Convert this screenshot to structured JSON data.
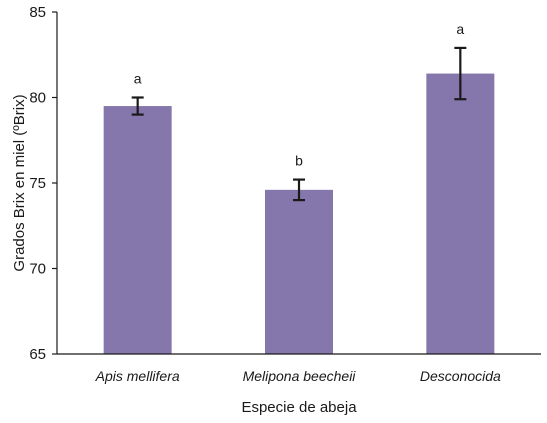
{
  "chart_data": {
    "type": "bar",
    "categories": [
      "Apis mellifera",
      "Melipona beecheii",
      "Desconocida"
    ],
    "values": [
      79.5,
      74.6,
      81.4
    ],
    "error": [
      0.5,
      0.6,
      1.5
    ],
    "significance_letters": [
      "a",
      "b",
      "a"
    ],
    "xlabel": "Especie de abeja",
    "ylabel": "Grados Brix en miel (ºBrix)",
    "ylim": [
      65,
      85
    ],
    "yticks": [
      "65",
      "70",
      "75",
      "80",
      "85"
    ],
    "grid": false,
    "bar_color": "#8577ab",
    "error_bar_color": "#1a1a1a",
    "axis_color": "#1a1a1a"
  }
}
